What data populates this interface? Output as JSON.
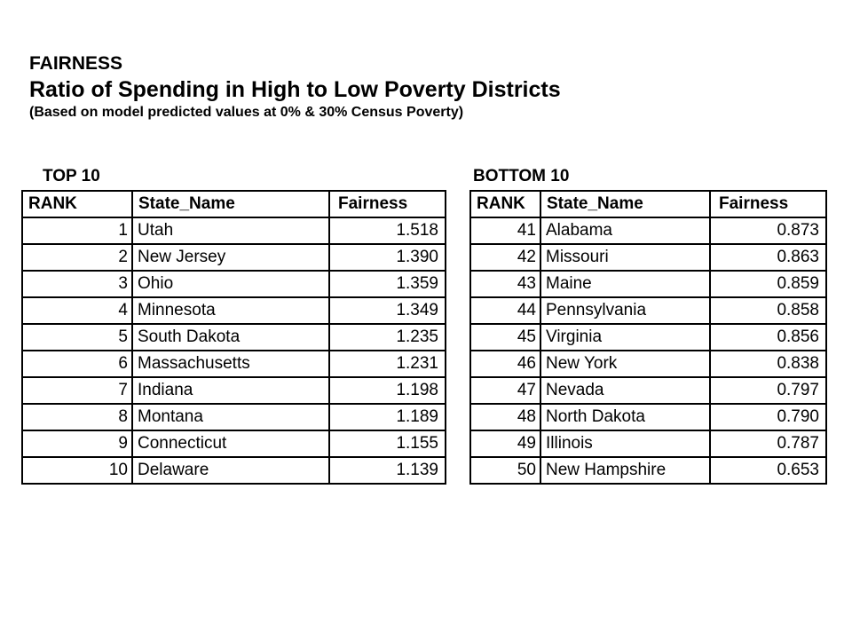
{
  "title": {
    "heading": "FAIRNESS",
    "subheading": "Ratio of Spending in High to Low Poverty Districts",
    "note": "(Based on model predicted values at 0% & 30% Census Poverty)"
  },
  "tables": [
    {
      "label": "TOP 10",
      "headers": [
        "RANK",
        "State_Name",
        "Fairness"
      ],
      "rows": [
        [
          "1",
          "Utah",
          "1.518"
        ],
        [
          "2",
          "New Jersey",
          "1.390"
        ],
        [
          "3",
          "Ohio",
          "1.359"
        ],
        [
          "4",
          "Minnesota",
          "1.349"
        ],
        [
          "5",
          "South Dakota",
          "1.235"
        ],
        [
          "6",
          "Massachusetts",
          "1.231"
        ],
        [
          "7",
          "Indiana",
          "1.198"
        ],
        [
          "8",
          "Montana",
          "1.189"
        ],
        [
          "9",
          "Connecticut",
          "1.155"
        ],
        [
          "10",
          "Delaware",
          "1.139"
        ]
      ]
    },
    {
      "label": "BOTTOM 10",
      "headers": [
        "RANK",
        "State_Name",
        "Fairness"
      ],
      "rows": [
        [
          "41",
          "Alabama",
          "0.873"
        ],
        [
          "42",
          "Missouri",
          "0.863"
        ],
        [
          "43",
          "Maine",
          "0.859"
        ],
        [
          "44",
          "Pennsylvania",
          "0.858"
        ],
        [
          "45",
          "Virginia",
          "0.856"
        ],
        [
          "46",
          "New York",
          "0.838"
        ],
        [
          "47",
          "Nevada",
          "0.797"
        ],
        [
          "48",
          "North Dakota",
          "0.790"
        ],
        [
          "49",
          "Illinois",
          "0.787"
        ],
        [
          "50",
          "New Hampshire",
          "0.653"
        ]
      ]
    }
  ],
  "colors": {
    "background": "#ffffff",
    "text": "#000000",
    "border": "#000000"
  }
}
